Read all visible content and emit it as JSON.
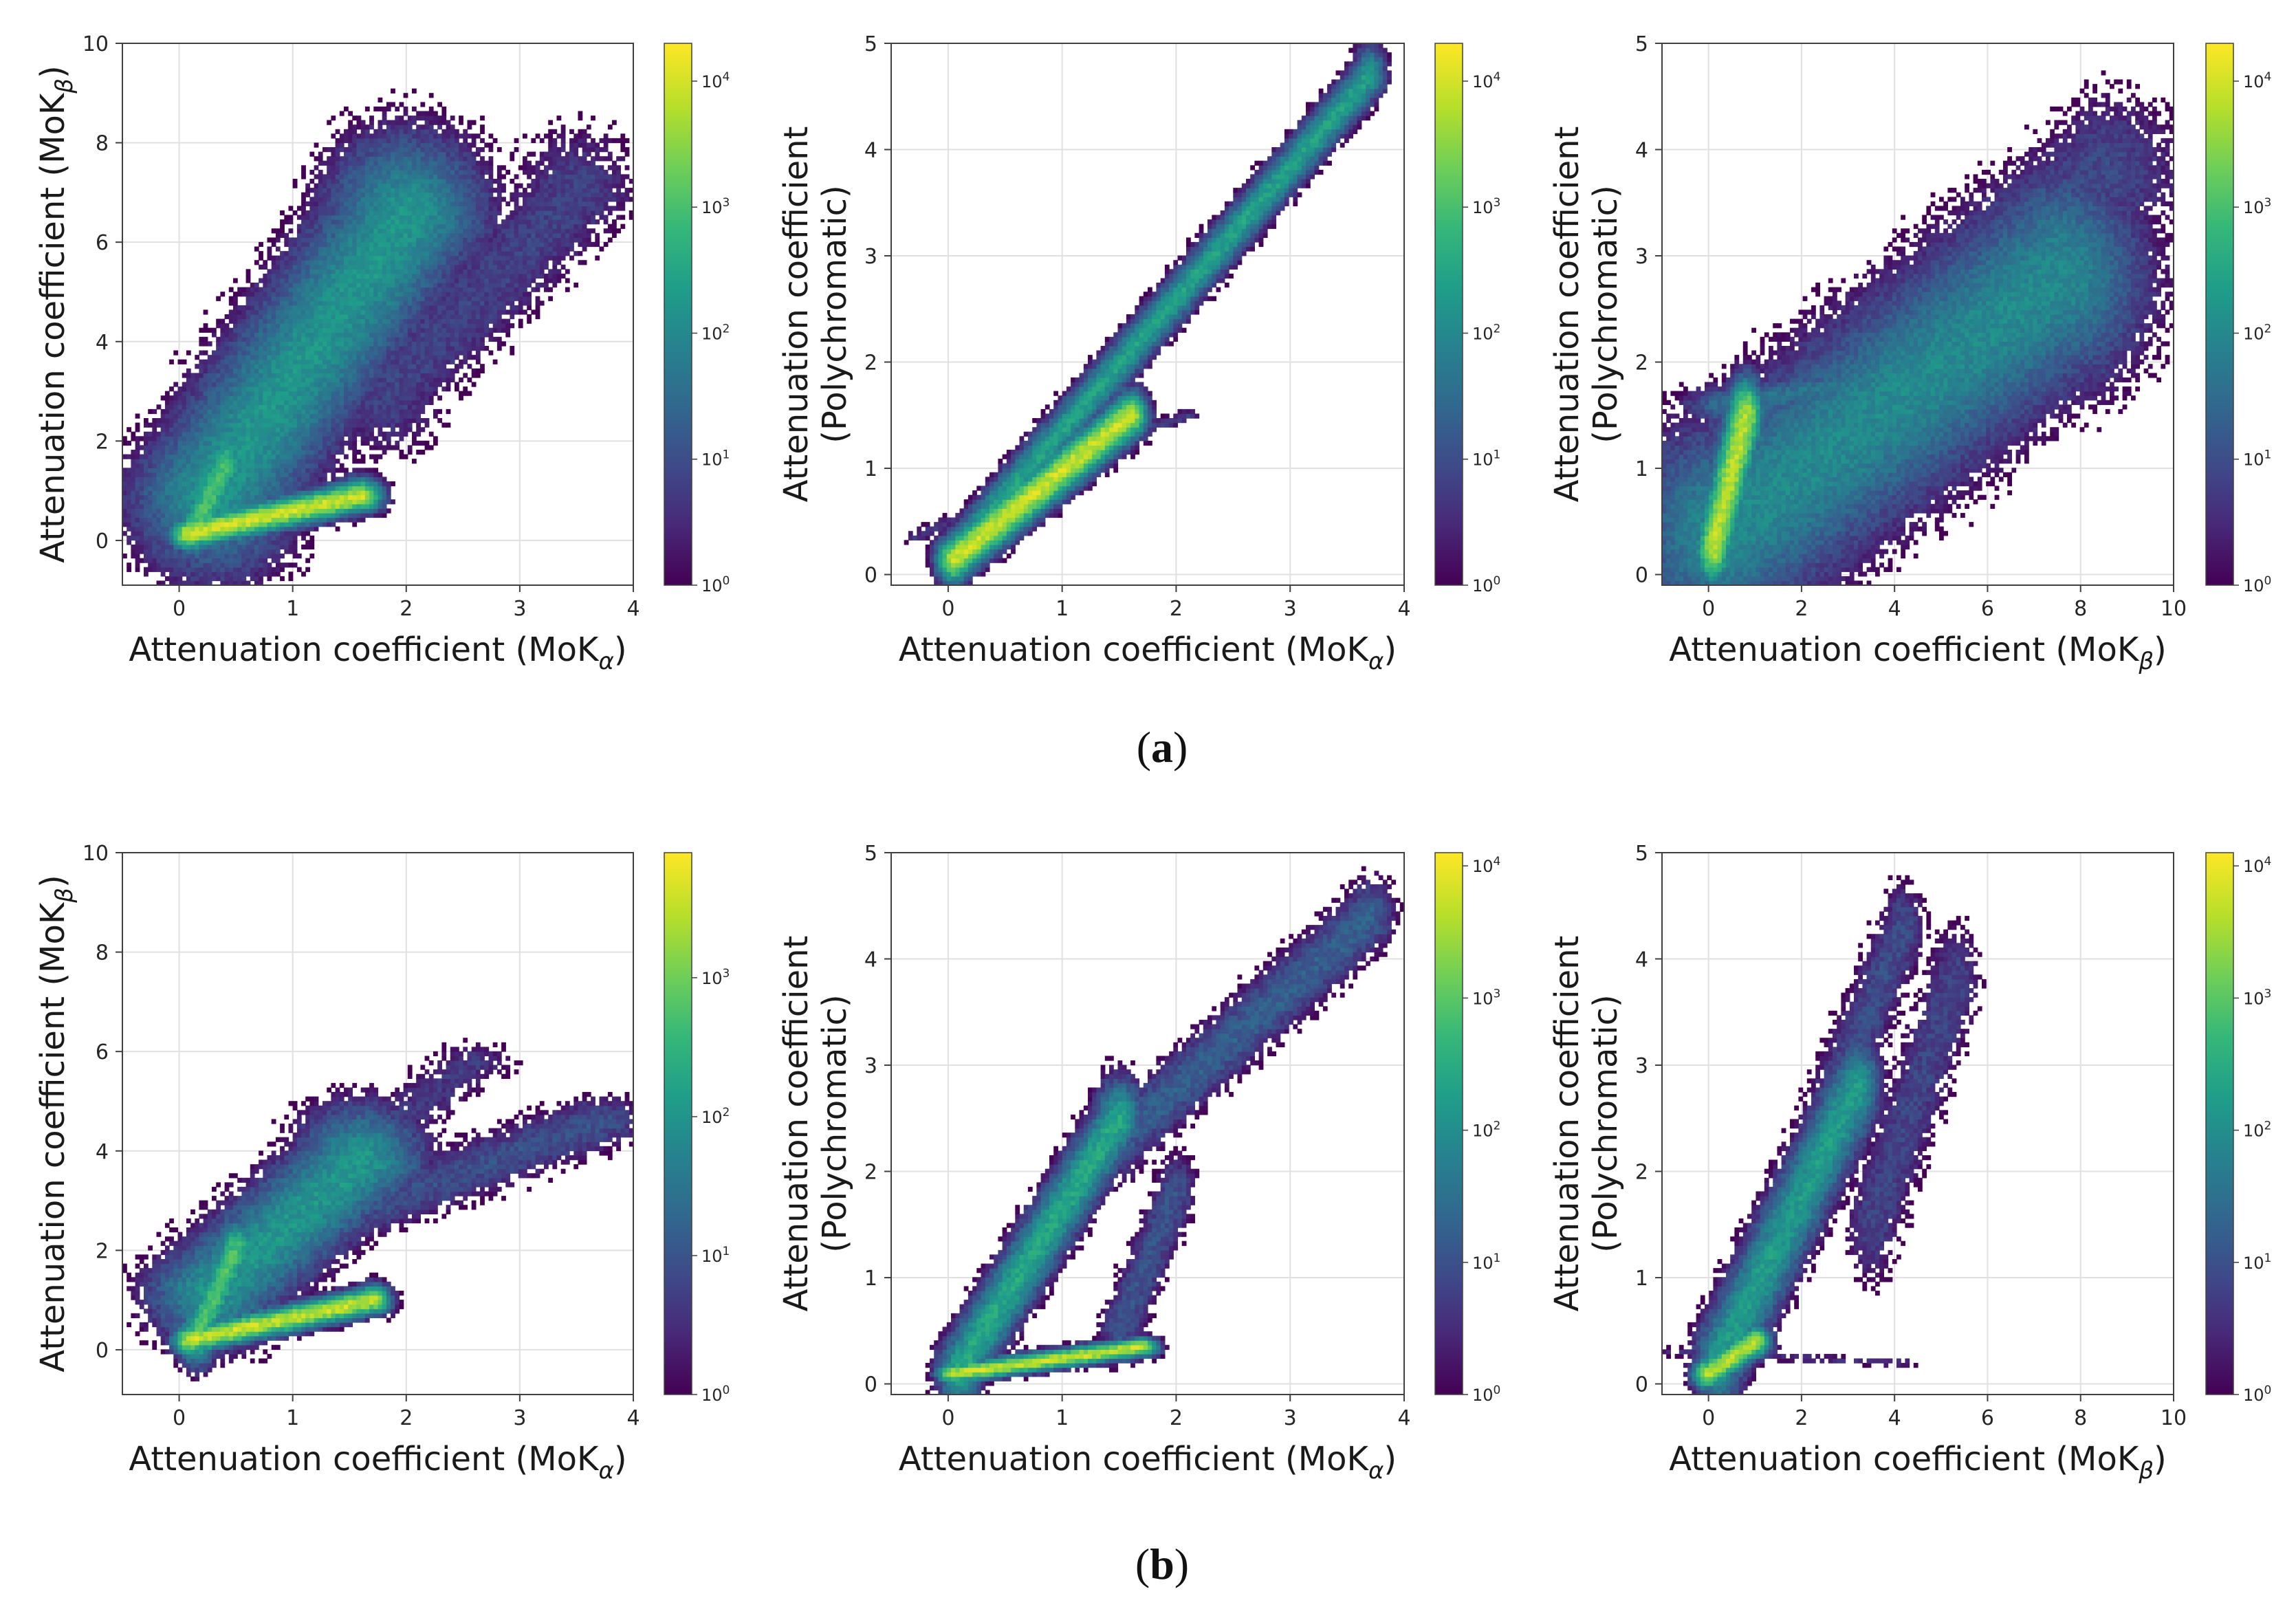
{
  "figure": {
    "row_labels": [
      {
        "open": "(",
        "letter": "a",
        "close": ")"
      },
      {
        "open": "(",
        "letter": "b",
        "close": ")"
      }
    ]
  },
  "colormap": [
    "#440154",
    "#482878",
    "#3e4a89",
    "#31688e",
    "#26828e",
    "#1f9e89",
    "#35b779",
    "#6ece58",
    "#b5de2b",
    "#fde725"
  ],
  "chart_data": [
    {
      "type": "heatmap",
      "row": "a",
      "col": 1,
      "xlabel": {
        "text": "Attenuation coefficient (MoK",
        "sub": "α",
        "tail": ")"
      },
      "ylabel": {
        "lines": [
          "Attenuation coefficient (MoK"
        ],
        "sub": "β",
        "tail": ")"
      },
      "xlim": [
        -0.5,
        4
      ],
      "ylim": [
        -0.9,
        10
      ],
      "xticks": [
        0,
        1,
        2,
        3,
        4
      ],
      "yticks": [
        0,
        2,
        4,
        6,
        8,
        10
      ],
      "colorbar": {
        "max_exp": 4.3,
        "ticks": [
          {
            "base": "10",
            "exp": "0",
            "v": 0
          },
          {
            "base": "10",
            "exp": "1",
            "v": 1
          },
          {
            "base": "10",
            "exp": "2",
            "v": 2
          },
          {
            "base": "10",
            "exp": "3",
            "v": 3
          },
          {
            "base": "10",
            "exp": "4",
            "v": 4
          }
        ]
      },
      "density_features": [
        {
          "kind": "seg",
          "p1": [
            0.1,
            0.15
          ],
          "p2": [
            1.6,
            0.9
          ],
          "sx": 0.15,
          "sy": 0.28,
          "peak": 4.3
        },
        {
          "kind": "seg",
          "p1": [
            0.15,
            0.3
          ],
          "p2": [
            0.4,
            1.5
          ],
          "sx": 0.14,
          "sy": 0.5,
          "peak": 3.4
        },
        {
          "kind": "seg",
          "p1": [
            0.3,
            1.0
          ],
          "p2": [
            2.0,
            6.5
          ],
          "sx": 0.55,
          "sy": 1.3,
          "peak": 2.6
        },
        {
          "kind": "seg",
          "p1": [
            1.8,
            3.0
          ],
          "p2": [
            3.5,
            7.0
          ],
          "sx": 0.45,
          "sy": 1.1,
          "peak": 1.2
        },
        {
          "kind": "seg",
          "p1": [
            -0.4,
            0.5
          ],
          "p2": [
            0.1,
            0.5
          ],
          "sx": 0.05,
          "sy": 0.08,
          "peak": 1.0
        }
      ]
    },
    {
      "type": "heatmap",
      "row": "a",
      "col": 2,
      "xlabel": {
        "text": "Attenuation coefficient (MoK",
        "sub": "α",
        "tail": ")"
      },
      "ylabel": {
        "lines": [
          "Attenuation coefficient",
          "(Polychromatic)"
        ],
        "sub": "",
        "tail": ""
      },
      "xlim": [
        -0.5,
        4
      ],
      "ylim": [
        -0.1,
        5
      ],
      "xticks": [
        0,
        1,
        2,
        3,
        4
      ],
      "yticks": [
        0,
        1,
        2,
        3,
        4,
        5
      ],
      "colorbar": {
        "max_exp": 4.3,
        "ticks": [
          {
            "base": "10",
            "exp": "0",
            "v": 0
          },
          {
            "base": "10",
            "exp": "1",
            "v": 1
          },
          {
            "base": "10",
            "exp": "2",
            "v": 2
          },
          {
            "base": "10",
            "exp": "3",
            "v": 3
          },
          {
            "base": "10",
            "exp": "4",
            "v": 4
          }
        ]
      },
      "density_features": [
        {
          "kind": "seg",
          "p1": [
            0.05,
            0.15
          ],
          "p2": [
            1.6,
            1.5
          ],
          "sx": 0.12,
          "sy": 0.18,
          "peak": 4.3
        },
        {
          "kind": "seg",
          "p1": [
            0.1,
            0.25
          ],
          "p2": [
            3.7,
            4.7
          ],
          "sx": 0.11,
          "sy": 0.22,
          "peak": 2.8
        },
        {
          "kind": "seg",
          "p1": [
            1.5,
            1.3
          ],
          "p2": [
            2.1,
            1.5
          ],
          "sx": 0.08,
          "sy": 0.05,
          "peak": 1.1
        },
        {
          "kind": "seg",
          "p1": [
            -0.3,
            0.35
          ],
          "p2": [
            0.1,
            0.55
          ],
          "sx": 0.06,
          "sy": 0.06,
          "peak": 1.0
        }
      ]
    },
    {
      "type": "heatmap",
      "row": "a",
      "col": 3,
      "xlabel": {
        "text": "Attenuation coefficient (MoK",
        "sub": "β",
        "tail": ")"
      },
      "ylabel": {
        "lines": [
          "Attenuation coefficient",
          "(Polychromatic)"
        ],
        "sub": "",
        "tail": ""
      },
      "xlim": [
        -1,
        10
      ],
      "ylim": [
        -0.1,
        5
      ],
      "xticks": [
        0,
        2,
        4,
        6,
        8,
        10
      ],
      "yticks": [
        0,
        1,
        2,
        3,
        4,
        5
      ],
      "colorbar": {
        "max_exp": 4.3,
        "ticks": [
          {
            "base": "10",
            "exp": "0",
            "v": 0
          },
          {
            "base": "10",
            "exp": "1",
            "v": 1
          },
          {
            "base": "10",
            "exp": "2",
            "v": 2
          },
          {
            "base": "10",
            "exp": "3",
            "v": 3
          },
          {
            "base": "10",
            "exp": "4",
            "v": 4
          }
        ]
      },
      "density_features": [
        {
          "kind": "seg",
          "p1": [
            0.1,
            0.25
          ],
          "p2": [
            0.8,
            1.5
          ],
          "sx": 0.3,
          "sy": 0.28,
          "peak": 4.2
        },
        {
          "kind": "seg",
          "p1": [
            0.3,
            0.4
          ],
          "p2": [
            7.5,
            2.8
          ],
          "sx": 1.5,
          "sy": 0.8,
          "peak": 2.4
        },
        {
          "kind": "seg",
          "p1": [
            2.0,
            1.3
          ],
          "p2": [
            8.5,
            3.8
          ],
          "sx": 1.4,
          "sy": 0.6,
          "peak": 1.3
        },
        {
          "kind": "seg",
          "p1": [
            0.5,
            1.6
          ],
          "p2": [
            3.0,
            1.8
          ],
          "sx": 0.8,
          "sy": 0.15,
          "peak": 2.0
        }
      ]
    },
    {
      "type": "heatmap",
      "row": "b",
      "col": 1,
      "xlabel": {
        "text": "Attenuation coefficient (MoK",
        "sub": "α",
        "tail": ")"
      },
      "ylabel": {
        "lines": [
          "Attenuation coefficient (MoK"
        ],
        "sub": "β",
        "tail": ")"
      },
      "xlim": [
        -0.5,
        4
      ],
      "ylim": [
        -0.9,
        10
      ],
      "xticks": [
        0,
        1,
        2,
        3,
        4
      ],
      "yticks": [
        0,
        2,
        4,
        6,
        8,
        10
      ],
      "colorbar": {
        "max_exp": 3.9,
        "ticks": [
          {
            "base": "10",
            "exp": "0",
            "v": 0
          },
          {
            "base": "10",
            "exp": "1",
            "v": 1
          },
          {
            "base": "10",
            "exp": "2",
            "v": 2
          },
          {
            "base": "10",
            "exp": "3",
            "v": 3
          }
        ]
      },
      "density_features": [
        {
          "kind": "seg",
          "p1": [
            0.1,
            0.2
          ],
          "p2": [
            1.7,
            1.0
          ],
          "sx": 0.13,
          "sy": 0.25,
          "peak": 3.9
        },
        {
          "kind": "seg",
          "p1": [
            0.15,
            0.3
          ],
          "p2": [
            0.5,
            2.0
          ],
          "sx": 0.14,
          "sy": 0.5,
          "peak": 3.1
        },
        {
          "kind": "seg",
          "p1": [
            0.3,
            1.2
          ],
          "p2": [
            1.6,
            3.8
          ],
          "sx": 0.45,
          "sy": 0.9,
          "peak": 2.4
        },
        {
          "kind": "seg",
          "p1": [
            1.6,
            2.8
          ],
          "p2": [
            3.7,
            4.6
          ],
          "sx": 0.35,
          "sy": 0.45,
          "peak": 1.3
        },
        {
          "kind": "seg",
          "p1": [
            1.7,
            4.2
          ],
          "p2": [
            2.6,
            5.8
          ],
          "sx": 0.3,
          "sy": 0.35,
          "peak": 1.0
        }
      ]
    },
    {
      "type": "heatmap",
      "row": "b",
      "col": 2,
      "xlabel": {
        "text": "Attenuation coefficient (MoK",
        "sub": "α",
        "tail": ")"
      },
      "ylabel": {
        "lines": [
          "Attenuation coefficient",
          "(Polychromatic)"
        ],
        "sub": "",
        "tail": ""
      },
      "xlim": [
        -0.5,
        4
      ],
      "ylim": [
        -0.1,
        5
      ],
      "xticks": [
        0,
        1,
        2,
        3,
        4
      ],
      "yticks": [
        0,
        1,
        2,
        3,
        4,
        5
      ],
      "colorbar": {
        "max_exp": 4.1,
        "ticks": [
          {
            "base": "10",
            "exp": "0",
            "v": 0
          },
          {
            "base": "10",
            "exp": "1",
            "v": 1
          },
          {
            "base": "10",
            "exp": "2",
            "v": 2
          },
          {
            "base": "10",
            "exp": "3",
            "v": 3
          },
          {
            "base": "10",
            "exp": "4",
            "v": 4
          }
        ]
      },
      "density_features": [
        {
          "kind": "seg",
          "p1": [
            0.05,
            0.1
          ],
          "p2": [
            1.7,
            0.35
          ],
          "sx": 0.12,
          "sy": 0.07,
          "peak": 4.1
        },
        {
          "kind": "seg",
          "p1": [
            0.1,
            0.15
          ],
          "p2": [
            1.5,
            2.5
          ],
          "sx": 0.16,
          "sy": 0.3,
          "peak": 2.8
        },
        {
          "kind": "seg",
          "p1": [
            1.5,
            2.3
          ],
          "p2": [
            3.7,
            4.4
          ],
          "sx": 0.18,
          "sy": 0.3,
          "peak": 1.6
        },
        {
          "kind": "seg",
          "p1": [
            1.5,
            0.5
          ],
          "p2": [
            2.0,
            1.8
          ],
          "sx": 0.15,
          "sy": 0.3,
          "peak": 1.4
        }
      ]
    },
    {
      "type": "heatmap",
      "row": "b",
      "col": 3,
      "xlabel": {
        "text": "Attenuation coefficient (MoK",
        "sub": "β",
        "tail": ")"
      },
      "ylabel": {
        "lines": [
          "Attenuation coefficient",
          "(Polychromatic)"
        ],
        "sub": "",
        "tail": ""
      },
      "xlim": [
        -1,
        10
      ],
      "ylim": [
        -0.1,
        5
      ],
      "xticks": [
        0,
        2,
        4,
        6,
        8,
        10
      ],
      "yticks": [
        0,
        1,
        2,
        3,
        4,
        5
      ],
      "colorbar": {
        "max_exp": 4.1,
        "ticks": [
          {
            "base": "10",
            "exp": "0",
            "v": 0
          },
          {
            "base": "10",
            "exp": "1",
            "v": 1
          },
          {
            "base": "10",
            "exp": "2",
            "v": 2
          },
          {
            "base": "10",
            "exp": "3",
            "v": 3
          },
          {
            "base": "10",
            "exp": "4",
            "v": 4
          }
        ]
      },
      "density_features": [
        {
          "kind": "seg",
          "p1": [
            0.0,
            0.1
          ],
          "p2": [
            1.0,
            0.4
          ],
          "sx": 0.28,
          "sy": 0.12,
          "peak": 4.0
        },
        {
          "kind": "seg",
          "p1": [
            0.2,
            0.2
          ],
          "p2": [
            3.2,
            2.8
          ],
          "sx": 0.4,
          "sy": 0.35,
          "peak": 2.6
        },
        {
          "kind": "seg",
          "p1": [
            2.5,
            2.5
          ],
          "p2": [
            4.2,
            4.3
          ],
          "sx": 0.4,
          "sy": 0.35,
          "peak": 1.3
        },
        {
          "kind": "seg",
          "p1": [
            3.5,
            1.5
          ],
          "p2": [
            5.3,
            3.8
          ],
          "sx": 0.45,
          "sy": 0.45,
          "peak": 1.2
        },
        {
          "kind": "seg",
          "p1": [
            -0.8,
            0.3
          ],
          "p2": [
            4.2,
            0.2
          ],
          "sx": 0.25,
          "sy": 0.04,
          "peak": 0.9
        }
      ]
    }
  ]
}
